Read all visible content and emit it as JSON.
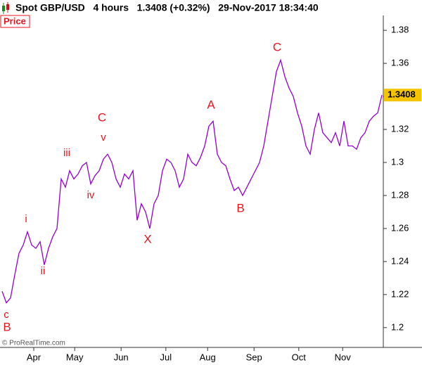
{
  "chart_data": {
    "type": "line",
    "title": "Spot GBP/USD   4 hours   1.3408 (+0.32%)   29-Nov-2017 18:34:40",
    "panel_label": "Price",
    "credit": "© ProRealTime.com",
    "series": [
      {
        "name": "Spot GBP/USD",
        "color": "#9400d3",
        "values": [
          1.222,
          1.215,
          1.218,
          1.232,
          1.245,
          1.25,
          1.258,
          1.25,
          1.248,
          1.252,
          1.238,
          1.248,
          1.255,
          1.26,
          1.29,
          1.285,
          1.295,
          1.29,
          1.293,
          1.298,
          1.3,
          1.287,
          1.292,
          1.295,
          1.302,
          1.305,
          1.3,
          1.29,
          1.285,
          1.293,
          1.29,
          1.295,
          1.265,
          1.275,
          1.27,
          1.26,
          1.275,
          1.28,
          1.295,
          1.302,
          1.3,
          1.295,
          1.285,
          1.29,
          1.305,
          1.3,
          1.298,
          1.303,
          1.31,
          1.322,
          1.325,
          1.305,
          1.3,
          1.298,
          1.29,
          1.283,
          1.285,
          1.28,
          1.285,
          1.29,
          1.295,
          1.3,
          1.31,
          1.325,
          1.34,
          1.355,
          1.362,
          1.352,
          1.345,
          1.34,
          1.33,
          1.322,
          1.31,
          1.305,
          1.32,
          1.33,
          1.318,
          1.315,
          1.312,
          1.318,
          1.31,
          1.325,
          1.31,
          1.31,
          1.308,
          1.315,
          1.318,
          1.325,
          1.328,
          1.33,
          1.3408
        ]
      }
    ],
    "xlim": [
      0,
      90
    ],
    "xticks": [
      {
        "value": 7.5,
        "label": "Apr"
      },
      {
        "value": 17.2,
        "label": "May"
      },
      {
        "value": 28.2,
        "label": "Jun"
      },
      {
        "value": 38.8,
        "label": "Jul"
      },
      {
        "value": 48.7,
        "label": "Aug"
      },
      {
        "value": 59.7,
        "label": "Sep"
      },
      {
        "value": 70.3,
        "label": "Oct"
      },
      {
        "value": 80.7,
        "label": "Nov"
      }
    ],
    "ylim": [
      1.188,
      1.389
    ],
    "yticks": [
      1.2,
      1.22,
      1.24,
      1.26,
      1.28,
      1.3,
      1.32,
      1.34,
      1.36,
      1.38
    ],
    "grid": false,
    "annotations": [
      "c",
      "B",
      "i",
      "ii",
      "iii",
      "iv",
      "C",
      "v",
      "X",
      "A",
      "B",
      "C"
    ]
  }
}
